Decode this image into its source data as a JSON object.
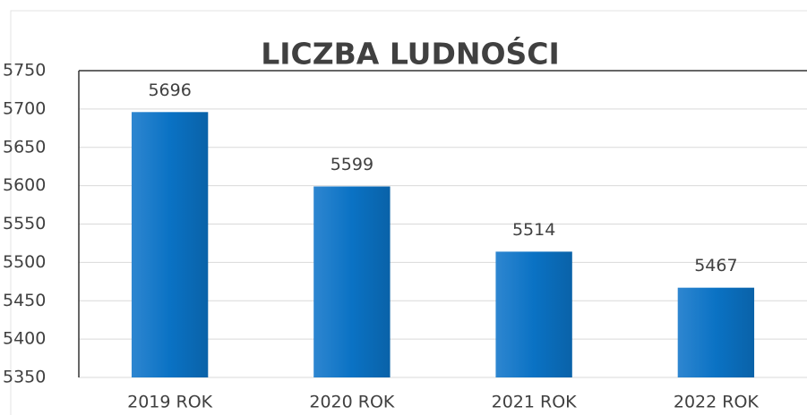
{
  "chart_data": {
    "type": "bar",
    "title": "LICZBA LUDNOŚCI",
    "categories": [
      "2019 ROK",
      "2020 ROK",
      "2021 ROK",
      "2022 ROK"
    ],
    "values": [
      5696,
      5599,
      5514,
      5467
    ],
    "color": "#0a72c4",
    "ylim": [
      5350,
      5750
    ],
    "yticks": [
      5350,
      5400,
      5450,
      5500,
      5550,
      5600,
      5650,
      5700,
      5750
    ],
    "grid": true
  }
}
